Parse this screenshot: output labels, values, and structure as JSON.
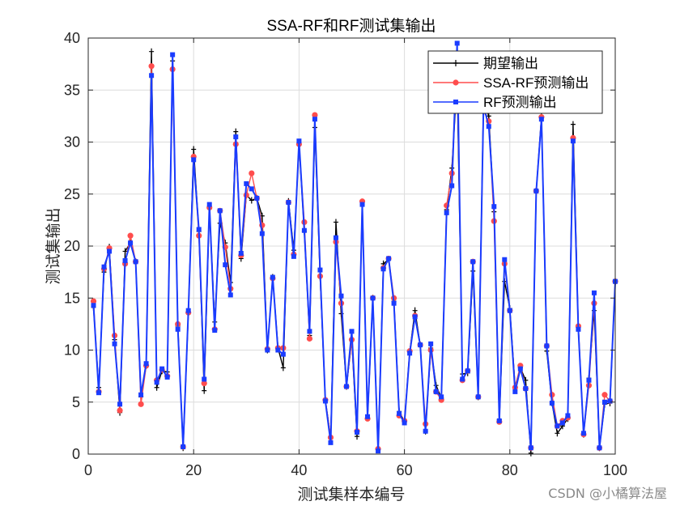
{
  "figure": {
    "watermark": "CSDN @小橘算法屋"
  },
  "chart_data": {
    "type": "line",
    "title": "SSA-RF和RF测试集输出",
    "xlabel": "测试集样本编号",
    "ylabel": "测试集输出",
    "xlim": [
      0,
      100
    ],
    "ylim": [
      0,
      40
    ],
    "xticks": [
      0,
      20,
      40,
      60,
      80,
      100
    ],
    "yticks": [
      0,
      5,
      10,
      15,
      20,
      25,
      30,
      35,
      40
    ],
    "grid": true,
    "legend_position": "northeast",
    "x": [
      1,
      2,
      3,
      4,
      5,
      6,
      7,
      8,
      9,
      10,
      11,
      12,
      13,
      14,
      15,
      16,
      17,
      18,
      19,
      20,
      21,
      22,
      23,
      24,
      25,
      26,
      27,
      28,
      29,
      30,
      31,
      32,
      33,
      34,
      35,
      36,
      37,
      38,
      39,
      40,
      41,
      42,
      43,
      44,
      45,
      46,
      47,
      48,
      49,
      50,
      51,
      52,
      53,
      54,
      55,
      56,
      57,
      58,
      59,
      60,
      61,
      62,
      63,
      64,
      65,
      66,
      67,
      68,
      69,
      70,
      71,
      72,
      73,
      74,
      75,
      76,
      77,
      78,
      79,
      80,
      81,
      82,
      83,
      84,
      85,
      86,
      87,
      88,
      89,
      90,
      91,
      92,
      93,
      94,
      95,
      96,
      97,
      98,
      99,
      100
    ],
    "series": [
      {
        "name": "期望输出",
        "color": "#000000",
        "marker": "plus",
        "values": [
          14.1,
          6.4,
          17.5,
          19.9,
          11.0,
          4.0,
          19.5,
          20.3,
          18.5,
          5.5,
          8.5,
          38.7,
          6.4,
          8.0,
          7.9,
          37.8,
          12.3,
          0.6,
          13.6,
          29.3,
          21.4,
          6.1,
          23.8,
          12.7,
          22.2,
          20.3,
          16.5,
          31.0,
          18.8,
          24.9,
          24.4,
          24.6,
          22.9,
          10.0,
          17.0,
          10.2,
          8.3,
          24.3,
          19.6,
          29.8,
          21.4,
          11.4,
          31.4,
          17.1,
          5.2,
          1.6,
          22.3,
          13.5,
          6.5,
          11.0,
          1.7,
          24.0,
          3.5,
          15.0,
          0.4,
          18.3,
          18.7,
          14.7,
          4.1,
          3.1,
          9.8,
          13.8,
          10.5,
          2.2,
          10.2,
          6.6,
          5.4,
          23.5,
          27.5,
          36.0,
          7.7,
          7.8,
          17.6,
          5.5,
          34.0,
          32.5,
          23.3,
          3.3,
          16.6,
          14.0,
          6.5,
          8.3,
          7.1,
          0.1,
          25.3,
          32.5,
          9.9,
          4.9,
          2.0,
          2.7,
          3.4,
          31.7,
          12.2,
          1.9,
          7.3,
          13.8,
          0.6,
          4.8,
          4.9,
          16.6
        ]
      },
      {
        "name": "SSA-RF预测输出",
        "color": "#ff4d4d",
        "marker": "circle",
        "values": [
          14.7,
          6.0,
          17.8,
          19.8,
          11.4,
          4.2,
          18.3,
          21.0,
          18.5,
          4.8,
          8.5,
          37.3,
          7.1,
          8.1,
          7.5,
          37.0,
          12.5,
          0.7,
          13.6,
          28.6,
          21.0,
          6.8,
          23.7,
          12.0,
          23.4,
          19.9,
          15.9,
          29.8,
          19.1,
          24.9,
          27.0,
          24.6,
          22.0,
          10.1,
          16.9,
          10.2,
          10.2,
          24.2,
          19.2,
          29.8,
          22.3,
          11.1,
          32.6,
          17.1,
          5.2,
          1.6,
          20.4,
          14.5,
          6.5,
          11.0,
          2.2,
          24.3,
          3.4,
          15.0,
          0.5,
          17.9,
          18.8,
          15.0,
          3.7,
          3.2,
          9.9,
          13.3,
          10.5,
          2.9,
          10.0,
          6.0,
          5.2,
          23.9,
          27.0,
          38.0,
          7.1,
          8.0,
          18.5,
          5.5,
          33.0,
          32.0,
          22.4,
          3.1,
          18.3,
          13.8,
          6.4,
          8.5,
          6.3,
          0.6,
          25.3,
          32.4,
          10.4,
          5.7,
          2.7,
          3.2,
          3.5,
          30.4,
          12.3,
          1.9,
          6.6,
          14.5,
          0.6,
          5.7,
          5.1,
          16.6
        ]
      },
      {
        "name": "RF预测输出",
        "color": "#1a3cff",
        "marker": "square",
        "values": [
          14.3,
          5.9,
          18.0,
          19.5,
          10.6,
          4.8,
          18.6,
          20.3,
          18.5,
          5.7,
          8.7,
          36.4,
          6.9,
          8.2,
          7.4,
          38.4,
          12.0,
          0.7,
          13.8,
          28.3,
          21.6,
          7.2,
          24.0,
          11.9,
          23.4,
          18.2,
          15.3,
          30.5,
          19.3,
          26.0,
          25.5,
          24.6,
          21.2,
          10.0,
          17.0,
          10.0,
          9.6,
          24.2,
          19.0,
          30.1,
          21.5,
          11.8,
          32.2,
          17.7,
          5.1,
          1.1,
          20.8,
          15.2,
          6.5,
          11.8,
          2.1,
          24.0,
          3.6,
          15.0,
          0.3,
          17.8,
          18.8,
          14.5,
          3.9,
          3.0,
          9.7,
          13.2,
          10.5,
          2.2,
          10.6,
          6.0,
          5.5,
          23.2,
          25.8,
          39.5,
          7.2,
          8.0,
          18.5,
          5.5,
          33.5,
          31.5,
          23.8,
          3.2,
          18.7,
          13.8,
          6.0,
          8.2,
          6.3,
          0.6,
          25.3,
          32.2,
          10.4,
          4.9,
          2.7,
          3.0,
          3.7,
          30.1,
          12.0,
          2.0,
          7.1,
          15.5,
          0.6,
          5.0,
          5.1,
          16.6
        ]
      }
    ]
  }
}
